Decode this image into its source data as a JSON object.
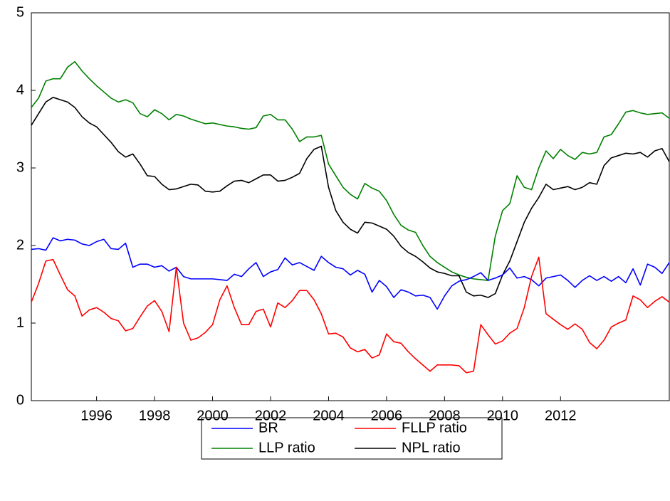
{
  "chart_data": {
    "type": "line",
    "x": [
      1993.75,
      1994,
      1994.25,
      1994.5,
      1994.75,
      1995,
      1995.25,
      1995.5,
      1995.75,
      1996,
      1996.25,
      1996.5,
      1996.75,
      1997,
      1997.25,
      1997.5,
      1997.75,
      1998,
      1998.25,
      1998.5,
      1998.75,
      1999,
      1999.25,
      1999.5,
      1999.75,
      2000,
      2000.25,
      2000.5,
      2000.75,
      2001,
      2001.25,
      2001.5,
      2001.75,
      2002,
      2002.25,
      2002.5,
      2002.75,
      2003,
      2003.25,
      2003.5,
      2003.75,
      2004,
      2004.25,
      2004.5,
      2004.75,
      2005,
      2005.25,
      2005.5,
      2005.75,
      2006,
      2006.25,
      2006.5,
      2006.75,
      2007,
      2007.25,
      2007.5,
      2007.75,
      2008,
      2008.25,
      2008.5,
      2008.75,
      2009,
      2009.25,
      2009.5,
      2009.75,
      2010,
      2010.25,
      2010.5,
      2010.75,
      2011,
      2011.25,
      2011.5,
      2011.75,
      2012,
      2012.25,
      2012.5,
      2012.75,
      2013,
      2013.25,
      2013.5,
      2013.75,
      2014,
      2014.25,
      2014.5,
      2014.75,
      2015,
      2015.25,
      2015.5,
      2015.75
    ],
    "xlim": [
      1993.75,
      2015.75
    ],
    "xticks": [
      1996,
      1998,
      2000,
      2002,
      2004,
      2006,
      2008,
      2010,
      2012
    ],
    "ylim": [
      0,
      5
    ],
    "yticks": [
      0,
      1,
      2,
      3,
      4,
      5
    ],
    "legend": "bottom",
    "series": [
      {
        "name": "BR",
        "color": "#0000ff",
        "values": [
          1.95,
          1.96,
          1.94,
          2.1,
          2.06,
          2.08,
          2.07,
          2.02,
          2.0,
          2.05,
          2.08,
          1.96,
          1.95,
          2.03,
          1.72,
          1.76,
          1.76,
          1.72,
          1.74,
          1.67,
          1.72,
          1.6,
          1.57,
          1.57,
          1.57,
          1.57,
          1.56,
          1.55,
          1.63,
          1.6,
          1.7,
          1.78,
          1.6,
          1.66,
          1.69,
          1.84,
          1.75,
          1.78,
          1.73,
          1.68,
          1.86,
          1.78,
          1.72,
          1.7,
          1.62,
          1.68,
          1.63,
          1.4,
          1.55,
          1.47,
          1.33,
          1.43,
          1.4,
          1.35,
          1.36,
          1.33,
          1.18,
          1.35,
          1.48,
          1.54,
          1.56,
          1.6,
          1.65,
          1.55,
          1.58,
          1.62,
          1.71,
          1.58,
          1.6,
          1.56,
          1.48,
          1.58,
          1.6,
          1.62,
          1.55,
          1.46,
          1.55,
          1.61,
          1.55,
          1.6,
          1.54,
          1.6,
          1.52,
          1.7,
          1.49,
          1.76,
          1.72,
          1.64,
          1.78
        ]
      },
      {
        "name": "FLLP ratio",
        "color": "#ff0000",
        "values": [
          1.27,
          1.51,
          1.8,
          1.82,
          1.62,
          1.43,
          1.35,
          1.09,
          1.17,
          1.2,
          1.14,
          1.06,
          1.03,
          0.9,
          0.93,
          1.08,
          1.22,
          1.29,
          1.15,
          0.89,
          1.72,
          1.0,
          0.78,
          0.81,
          0.88,
          0.98,
          1.3,
          1.48,
          1.2,
          0.98,
          0.98,
          1.15,
          1.18,
          0.95,
          1.26,
          1.2,
          1.29,
          1.42,
          1.42,
          1.3,
          1.12,
          0.86,
          0.87,
          0.82,
          0.68,
          0.63,
          0.66,
          0.55,
          0.59,
          0.86,
          0.76,
          0.74,
          0.63,
          0.54,
          0.46,
          0.38,
          0.46,
          0.46,
          0.46,
          0.45,
          0.36,
          0.38,
          0.98,
          0.85,
          0.73,
          0.77,
          0.87,
          0.93,
          1.2,
          1.6,
          1.85,
          1.12,
          1.05,
          0.98,
          0.92,
          0.99,
          0.92,
          0.75,
          0.67,
          0.78,
          0.95,
          1.0,
          1.04,
          1.35,
          1.3,
          1.2,
          1.28,
          1.34,
          1.27
        ]
      },
      {
        "name": "LLP ratio",
        "color": "#008000",
        "values": [
          3.78,
          3.9,
          4.12,
          4.15,
          4.15,
          4.3,
          4.37,
          4.25,
          4.15,
          4.06,
          3.98,
          3.9,
          3.85,
          3.88,
          3.84,
          3.7,
          3.66,
          3.75,
          3.7,
          3.62,
          3.69,
          3.67,
          3.63,
          3.6,
          3.57,
          3.58,
          3.56,
          3.54,
          3.53,
          3.51,
          3.5,
          3.52,
          3.67,
          3.69,
          3.62,
          3.62,
          3.5,
          3.34,
          3.4,
          3.4,
          3.42,
          3.05,
          2.9,
          2.75,
          2.66,
          2.6,
          2.8,
          2.74,
          2.7,
          2.58,
          2.4,
          2.26,
          2.2,
          2.17,
          2.0,
          1.86,
          1.78,
          1.72,
          1.66,
          1.62,
          1.59,
          1.57,
          1.56,
          1.55,
          2.12,
          2.45,
          2.54,
          2.9,
          2.75,
          2.72,
          3.0,
          3.22,
          3.12,
          3.24,
          3.16,
          3.11,
          3.2,
          3.18,
          3.2,
          3.4,
          3.43,
          3.57,
          3.72,
          3.74,
          3.71,
          3.69,
          3.7,
          3.71,
          3.64
        ]
      },
      {
        "name": "NPL ratio",
        "color": "#000000",
        "values": [
          3.55,
          3.7,
          3.85,
          3.91,
          3.88,
          3.85,
          3.78,
          3.66,
          3.58,
          3.53,
          3.43,
          3.33,
          3.21,
          3.14,
          3.18,
          3.05,
          2.9,
          2.89,
          2.79,
          2.72,
          2.73,
          2.76,
          2.79,
          2.78,
          2.7,
          2.69,
          2.7,
          2.77,
          2.83,
          2.84,
          2.81,
          2.86,
          2.91,
          2.91,
          2.83,
          2.84,
          2.88,
          2.93,
          3.12,
          3.24,
          3.28,
          2.75,
          2.45,
          2.3,
          2.21,
          2.16,
          2.3,
          2.29,
          2.25,
          2.21,
          2.12,
          1.99,
          1.91,
          1.86,
          1.79,
          1.71,
          1.66,
          1.64,
          1.61,
          1.61,
          1.4,
          1.35,
          1.36,
          1.33,
          1.38,
          1.62,
          1.8,
          2.05,
          2.3,
          2.48,
          2.62,
          2.79,
          2.72,
          2.74,
          2.76,
          2.72,
          2.75,
          2.81,
          2.79,
          3.03,
          3.13,
          3.16,
          3.19,
          3.18,
          3.2,
          3.14,
          3.22,
          3.25,
          3.08
        ]
      }
    ]
  }
}
